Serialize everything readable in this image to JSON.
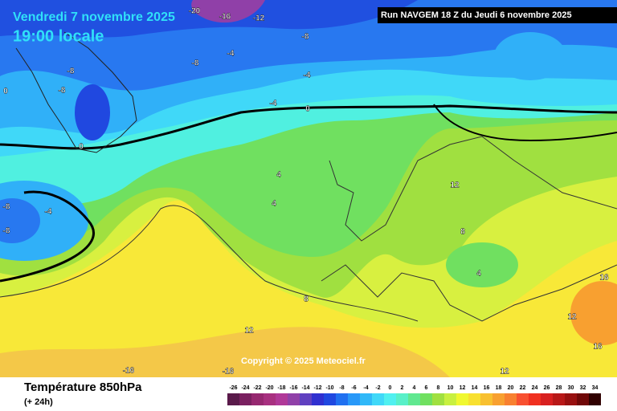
{
  "header": {
    "date": "Vendredi 7 novembre 2025",
    "time": "19:00 locale",
    "run": "Run NAVGEM 18 Z du Jeudi 6 novembre 2025"
  },
  "map": {
    "copyright": "Copyright © 2025 Meteociel.fr",
    "contour_labels": [
      "-20",
      "-16",
      "-12",
      "-8",
      "-4",
      "-8",
      "-8",
      "-4",
      "-8",
      "0",
      "-4",
      "0",
      "0",
      "-8",
      "-4",
      "-8",
      "4",
      "4",
      "12",
      "8",
      "4",
      "8",
      "12",
      "12",
      "16",
      "16",
      "-16",
      "-16",
      "12"
    ]
  },
  "footer": {
    "title": "Température 850hPa",
    "subtitle": "(+ 24h)"
  },
  "legend": {
    "values": [
      -26,
      -24,
      -22,
      -20,
      -18,
      -16,
      -14,
      -12,
      -10,
      -8,
      -6,
      -4,
      -2,
      0,
      2,
      4,
      6,
      8,
      10,
      12,
      14,
      16,
      18,
      20,
      22,
      24,
      26,
      28,
      30,
      32,
      34
    ],
    "colors": [
      "#5a1a4a",
      "#7a2060",
      "#962870",
      "#a83080",
      "#b03898",
      "#9040a8",
      "#6040c0",
      "#3030d0",
      "#2048e0",
      "#2070f0",
      "#2898f8",
      "#30b8f8",
      "#40d8f8",
      "#50f0f0",
      "#58f0c8",
      "#60e890",
      "#70e060",
      "#a0e040",
      "#c8f040",
      "#f0f830",
      "#f8e030",
      "#f8c030",
      "#f8a030",
      "#f88030",
      "#f85030",
      "#f03020",
      "#d82020",
      "#b81818",
      "#981010",
      "#700808",
      "#300000"
    ]
  }
}
